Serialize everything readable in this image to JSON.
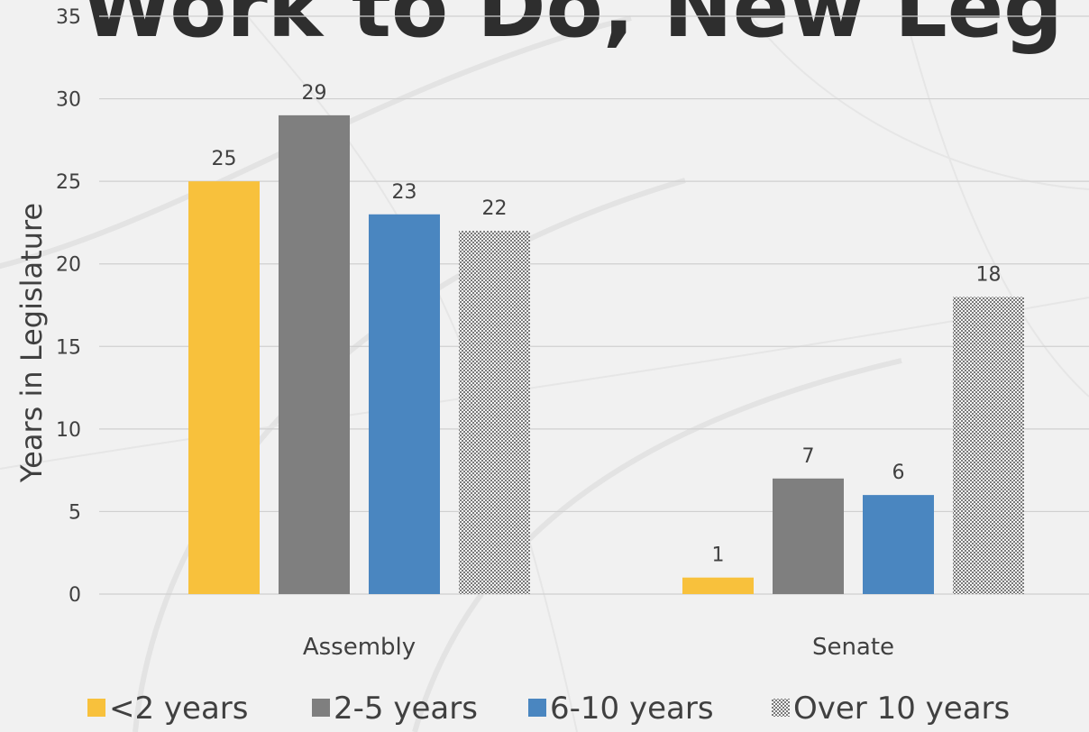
{
  "slide": {
    "title_fragment": "Work to Do, New Leg"
  },
  "chart_data": {
    "type": "bar",
    "title": "",
    "xlabel": "",
    "ylabel": "Years in Legislature",
    "ylim": [
      0,
      35
    ],
    "yticks": [
      0,
      5,
      10,
      15,
      20,
      25,
      30,
      35
    ],
    "grid": true,
    "legend_position": "bottom",
    "categories": [
      "Assembly",
      "Senate"
    ],
    "series": [
      {
        "name": "<2 years",
        "values": [
          25,
          1
        ],
        "color": "#f8c13c",
        "pattern": "solid"
      },
      {
        "name": "2-5 years",
        "values": [
          29,
          7
        ],
        "color": "#7f7f7f",
        "pattern": "solid"
      },
      {
        "name": "6-10 years",
        "values": [
          23,
          6
        ],
        "color": "#4a86c0",
        "pattern": "solid"
      },
      {
        "name": "Over 10 years",
        "values": [
          22,
          18
        ],
        "color": "#8a8a8a",
        "pattern": "checker"
      }
    ]
  }
}
